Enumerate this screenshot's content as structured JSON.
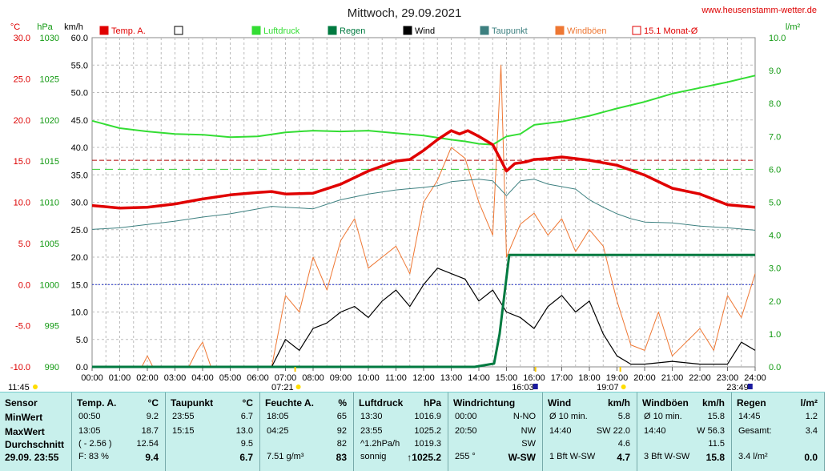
{
  "title": "Mittwoch, 29.09.2021",
  "website": "www.heusenstamm-wetter.de",
  "units": {
    "temp": "°C",
    "pressure": "hPa",
    "wind": "km/h",
    "rain": "l/m²"
  },
  "legend": [
    {
      "label": "Temp. A.",
      "color": "#e00000",
      "style": "fill"
    },
    {
      "label": "",
      "color": "#000000",
      "style": "box"
    },
    {
      "label": "Luftdruck",
      "color": "#33dd33",
      "style": "fill"
    },
    {
      "label": "Regen",
      "color": "#007a40",
      "style": "fill"
    },
    {
      "label": "Wind",
      "color": "#000000",
      "style": "fill"
    },
    {
      "label": "Taupunkt",
      "color": "#3d8080",
      "style": "fill"
    },
    {
      "label": "Windböen",
      "color": "#ee7733",
      "style": "fill"
    },
    {
      "label": "15.1 Monat-Ø",
      "color": "#e00000",
      "style": "box"
    }
  ],
  "below_axis": {
    "left": "11:45",
    "marks": [
      "07:21",
      "16:03",
      "19:07",
      "23:49"
    ]
  },
  "chart_data": {
    "type": "line",
    "x_ticks": [
      "00:00",
      "01:00",
      "02:00",
      "03:00",
      "04:00",
      "05:00",
      "06:00",
      "07:00",
      "08:00",
      "09:00",
      "10:00",
      "11:00",
      "12:00",
      "13:00",
      "14:00",
      "15:00",
      "16:00",
      "17:00",
      "18:00",
      "19:00",
      "20:00",
      "21:00",
      "22:00",
      "23:00",
      "24:00"
    ],
    "axes": {
      "temp": {
        "label": "°C",
        "min": -10,
        "max": 30,
        "ticks": [
          "30.0",
          "25.0",
          "20.0",
          "15.0",
          "10.0",
          "5.0",
          "0.0",
          "-5.0",
          "-10.0"
        ]
      },
      "pressure": {
        "label": "hPa",
        "min": 990,
        "max": 1030,
        "ticks": [
          "1030",
          "1025",
          "1020",
          "1015",
          "1010",
          "1005",
          "1000",
          "995",
          "990"
        ]
      },
      "wind": {
        "label": "km/h",
        "min": 0,
        "max": 60,
        "ticks": [
          "60.0",
          "55.0",
          "50.0",
          "45.0",
          "40.0",
          "35.0",
          "30.0",
          "25.0",
          "20.0",
          "15.0",
          "10.0",
          "5.0",
          "0.0"
        ]
      },
      "rain": {
        "label": "l/m²",
        "min": 0,
        "max": 10,
        "ticks": [
          "10.0",
          "9.0",
          "8.0",
          "7.0",
          "6.0",
          "5.0",
          "4.0",
          "3.0",
          "2.0",
          "1.0",
          "0.0"
        ]
      }
    },
    "monthly_avg_temp": 15.1,
    "series": [
      {
        "name": "Temp. A.",
        "axis": "temp",
        "color": "#e00000",
        "x": [
          0,
          1,
          2,
          3,
          4,
          5,
          6,
          6.5,
          7,
          8,
          9,
          10,
          11,
          11.5,
          12,
          12.5,
          13,
          13.3,
          13.6,
          14,
          14.5,
          14.8,
          15,
          15.3,
          15.7,
          16,
          16.5,
          17,
          17.5,
          18,
          18.5,
          19,
          19.5,
          20,
          21,
          22,
          23,
          24
        ],
        "y": [
          9.6,
          9.3,
          9.4,
          9.8,
          10.4,
          10.9,
          11.2,
          11.3,
          11.0,
          11.1,
          12.2,
          13.8,
          15.0,
          15.2,
          16.3,
          17.6,
          18.7,
          18.3,
          18.7,
          18.0,
          17.0,
          15.1,
          13.8,
          14.7,
          14.9,
          15.2,
          15.3,
          15.5,
          15.3,
          15.1,
          14.8,
          14.5,
          13.9,
          13.3,
          11.7,
          11.0,
          9.7,
          9.4
        ]
      },
      {
        "name": "Taupunkt",
        "axis": "temp",
        "color": "#3d8080",
        "x": [
          0,
          1,
          2,
          3,
          4,
          5,
          6,
          6.5,
          7,
          8,
          9,
          10,
          11,
          12,
          12.5,
          13,
          14,
          14.5,
          15,
          15.5,
          16,
          16.5,
          17,
          17.5,
          18,
          18.5,
          19,
          19.5,
          20,
          21,
          22,
          23,
          24
        ],
        "y": [
          6.7,
          6.9,
          7.3,
          7.7,
          8.2,
          8.6,
          9.2,
          9.5,
          9.4,
          9.2,
          10.3,
          11.0,
          11.5,
          11.8,
          12.0,
          12.5,
          12.8,
          12.6,
          10.8,
          12.6,
          12.8,
          12.2,
          11.9,
          11.6,
          10.3,
          9.4,
          8.6,
          8.0,
          7.6,
          7.5,
          7.1,
          6.9,
          6.6
        ]
      },
      {
        "name": "Luftdruck",
        "axis": "pressure",
        "color": "#33dd33",
        "x": [
          0,
          1,
          2,
          3,
          4,
          5,
          6,
          7,
          8,
          9,
          10,
          11,
          12,
          13,
          13.5,
          14,
          14.5,
          15,
          15.5,
          16,
          17,
          18,
          19,
          20,
          21,
          22,
          23,
          24
        ],
        "y": [
          1019.9,
          1019.0,
          1018.6,
          1018.3,
          1018.2,
          1017.9,
          1018.0,
          1018.5,
          1018.7,
          1018.6,
          1018.7,
          1018.4,
          1018.1,
          1017.6,
          1017.4,
          1017.1,
          1017.0,
          1018.0,
          1018.3,
          1019.4,
          1019.8,
          1020.5,
          1021.4,
          1022.2,
          1023.2,
          1023.9,
          1024.6,
          1025.4
        ]
      },
      {
        "name": "Wind",
        "axis": "wind",
        "color": "#000000",
        "x": [
          0,
          6.5,
          7,
          7.5,
          8,
          8.5,
          9,
          9.5,
          10,
          10.5,
          11,
          11.5,
          12,
          12.5,
          13,
          13.5,
          14,
          14.5,
          15,
          15.5,
          16,
          16.5,
          17,
          17.5,
          18,
          18.5,
          19,
          19.5,
          20,
          21,
          22,
          23,
          23.5,
          24
        ],
        "y": [
          0,
          0,
          5.0,
          3.0,
          7.0,
          8.0,
          10.0,
          11.0,
          9.0,
          12.0,
          14.0,
          11.0,
          15.0,
          18.0,
          17.0,
          16.0,
          12.0,
          14.0,
          10.0,
          9.0,
          7.0,
          11.0,
          13.0,
          10.0,
          12.0,
          6.0,
          2.0,
          0.5,
          0.5,
          1.0,
          0.5,
          0.5,
          4.5,
          3.0
        ]
      },
      {
        "name": "Windböen",
        "axis": "wind",
        "color": "#ee7733",
        "x": [
          0,
          1.8,
          2.0,
          2.2,
          3.5,
          3.8,
          4.0,
          4.3,
          6.5,
          7,
          7.5,
          8,
          8.5,
          9,
          9.5,
          10,
          10.5,
          11,
          11.5,
          12,
          12.5,
          13,
          13.5,
          14,
          14.5,
          14.8,
          15,
          15.5,
          16,
          16.5,
          17,
          17.5,
          18,
          18.5,
          19,
          19.5,
          20,
          20.5,
          21,
          22,
          22.5,
          23,
          23.5,
          24
        ],
        "y": [
          0,
          0,
          2.0,
          0,
          0,
          3.0,
          4.5,
          0,
          0,
          13.0,
          10.0,
          20.0,
          14.0,
          23.0,
          27.0,
          18.0,
          20.0,
          22.0,
          17.0,
          30.0,
          34.0,
          40.0,
          38.0,
          30.0,
          24.0,
          55.0,
          20.0,
          26.0,
          28.0,
          24.0,
          27.0,
          21.0,
          25.0,
          22.0,
          12.0,
          4.0,
          3.0,
          10.0,
          2.0,
          7.0,
          3.0,
          13.0,
          9.0,
          17.0
        ]
      },
      {
        "name": "Regen",
        "axis": "rain",
        "color": "#007a40",
        "x": [
          0,
          13.85,
          14.55,
          14.75,
          15.1,
          24
        ],
        "y": [
          0.0,
          0.0,
          0.1,
          1.0,
          3.4,
          3.4
        ]
      }
    ]
  },
  "stats": {
    "row_labels": [
      "Sensor",
      "MinWert",
      "MaxWert",
      "Durchschnitt",
      "29.09. 23:55"
    ],
    "columns": [
      {
        "title": "Temp. A.",
        "unit": "°C",
        "rows": [
          [
            "00:50",
            "9.2"
          ],
          [
            "13:05",
            "18.7"
          ],
          [
            "( - 2.56 )",
            "12.54"
          ],
          [
            "F: 83 %",
            "9.4"
          ]
        ]
      },
      {
        "title": "Taupunkt",
        "unit": "°C",
        "rows": [
          [
            "23:55",
            "6.7"
          ],
          [
            "15:15",
            "13.0"
          ],
          [
            "",
            "9.5"
          ],
          [
            "",
            "6.7"
          ]
        ]
      },
      {
        "title": "Feuchte A.",
        "unit": "%",
        "rows": [
          [
            "18:05",
            "65"
          ],
          [
            "04:25",
            "92"
          ],
          [
            "",
            "82"
          ],
          [
            "7.51 g/m³",
            "83"
          ]
        ]
      },
      {
        "title": "Luftdruck",
        "unit": "hPa",
        "rows": [
          [
            "13:30",
            "1016.9"
          ],
          [
            "23:55",
            "1025.2"
          ],
          [
            "^1.2hPa/h",
            "1019.3"
          ],
          [
            "sonnig",
            "↑1025.2"
          ]
        ]
      },
      {
        "title": "Windrichtung",
        "unit": "",
        "rows": [
          [
            "00:00",
            "N-NO"
          ],
          [
            "20:50",
            "NW"
          ],
          [
            "",
            "SW"
          ],
          [
            "255 °",
            "W-SW"
          ]
        ]
      },
      {
        "title": "Wind",
        "unit": "km/h",
        "rows": [
          [
            "Ø 10 min.",
            "5.8"
          ],
          [
            "14:40",
            "SW 22.0"
          ],
          [
            "",
            "4.6"
          ],
          [
            "1 Bft W-SW",
            "4.7"
          ]
        ]
      },
      {
        "title": "Windböen",
        "unit": "km/h",
        "rows": [
          [
            "Ø 10 min.",
            "15.8"
          ],
          [
            "14:40",
            "W 56.3"
          ],
          [
            "",
            "11.5"
          ],
          [
            "3 Bft W-SW",
            "15.8"
          ]
        ]
      },
      {
        "title": "Regen",
        "unit": "l/m²",
        "rows": [
          [
            "14:45",
            "1.2"
          ],
          [
            "Gesamt:",
            "3.4"
          ],
          [
            "",
            ""
          ],
          [
            "3.4 l/m²",
            "0.0"
          ]
        ]
      }
    ]
  }
}
